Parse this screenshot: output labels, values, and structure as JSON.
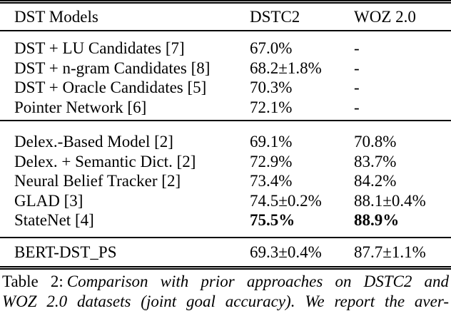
{
  "table": {
    "header": {
      "model": "DST Models",
      "dstc2": "DSTC2",
      "woz": "WOZ 2.0"
    },
    "section1": {
      "rows": [
        {
          "model": "DST + LU Candidates [7]",
          "dstc2": "67.0%",
          "woz": "-"
        },
        {
          "model": "DST + n-gram Candidates [8]",
          "dstc2": "68.2±1.8%",
          "woz": "-"
        },
        {
          "model": "DST + Oracle Candidates [5]",
          "dstc2": "70.3%",
          "woz": "-"
        },
        {
          "model": "Pointer Network [6]",
          "dstc2": "72.1%",
          "woz": "-"
        }
      ]
    },
    "section2": {
      "rows": [
        {
          "model": "Delex.-Based Model [2]",
          "dstc2": "69.1%",
          "woz": "70.8%"
        },
        {
          "model": "Delex. + Semantic Dict. [2]",
          "dstc2": "72.9%",
          "woz": "83.7%"
        },
        {
          "model": "Neural Belief Tracker [2]",
          "dstc2": "73.4%",
          "woz": "84.2%"
        },
        {
          "model": "GLAD [3]",
          "dstc2": "74.5±0.2%",
          "woz": "88.1±0.4%"
        },
        {
          "model": "StateNet [4]",
          "dstc2": "75.5%",
          "woz": "88.9%"
        }
      ]
    },
    "section3": {
      "rows": [
        {
          "model": "BERT-DST_PS",
          "dstc2": "69.3±0.4%",
          "woz": "87.7±1.1%"
        }
      ]
    }
  },
  "caption": {
    "label": "Table 2:",
    "line1": "Comparison with prior approaches on DSTC2 and",
    "line2": "WOZ 2.0 datasets (joint goal accuracy). We report the aver-"
  },
  "colors": {
    "text": "#000000",
    "rule": "#000000",
    "background": "#ffffff"
  }
}
